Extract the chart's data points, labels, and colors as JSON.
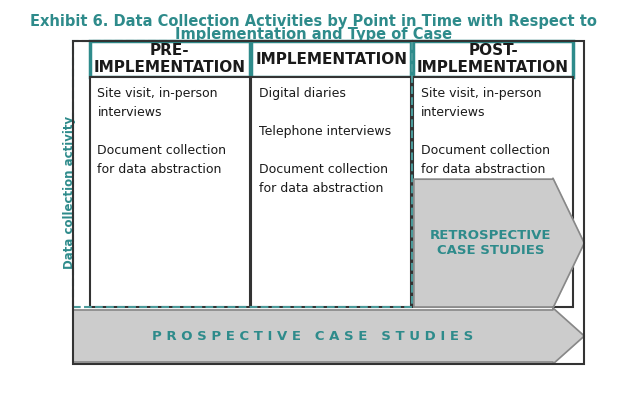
{
  "title_line1": "Exhibit 6. Data Collection Activities by Point in Time with Respect to",
  "title_line2": "Implementation and Type of Case",
  "title_color": "#2E8B8B",
  "title_fontsize": 10.5,
  "header_border_color": "#2E8B8B",
  "header_text_color": "#1a1a1a",
  "headers": [
    "PRE-\nIMPLEMENTATION",
    "IMPLEMENTATION",
    "POST-\nIMPLEMENTATION"
  ],
  "body_text": [
    "Site visit, in-person\ninterviews\n\nDocument collection\nfor data abstraction",
    "Digital diaries\n\nTelephone interviews\n\nDocument collection\nfor data abstraction",
    "Site visit, in-person\ninterviews\n\nDocument collection\nfor data abstraction"
  ],
  "body_text_color": "#1a1a1a",
  "cell_border_color": "#333333",
  "dashed_border_color": "#4a9a9a",
  "side_label": "Data collection activity",
  "side_label_color": "#2E8B8B",
  "prospective_label": "P R O S P E C T I V E   C A S E   S T U D I E S",
  "retrospective_label": "RETROSPECTIVE\nCASE STUDIES",
  "arrow_fill_color": "#cccccc",
  "arrow_border_color": "#888888",
  "background_color": "white",
  "body_fontsize": 9.0,
  "header_fontsize": 11.0,
  "arrow_text_color": "#2E8B8B"
}
